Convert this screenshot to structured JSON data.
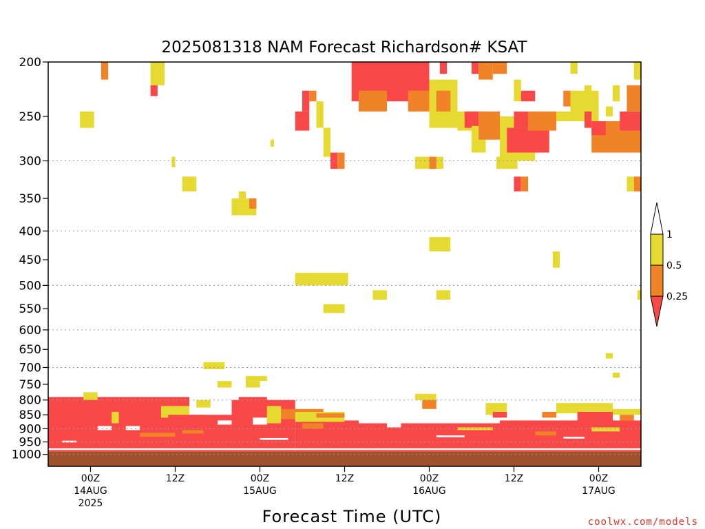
{
  "chart_data": {
    "type": "heatmap",
    "title": "2025081318 NAM Forecast Richardson# KSAT",
    "xlabel": "Forecast Time (UTC)",
    "ylabel": "",
    "y_axis": {
      "scale": "log",
      "inverted": true,
      "units": "hPa",
      "range": [
        200,
        1050
      ],
      "ticks": [
        200,
        250,
        300,
        350,
        400,
        450,
        500,
        550,
        600,
        650,
        700,
        750,
        800,
        850,
        900,
        950,
        1000
      ],
      "gridlines": [
        300,
        400,
        500,
        600,
        700,
        800,
        900,
        950,
        1000
      ]
    },
    "x_axis": {
      "units": "hours since 2025-08-13 18Z",
      "range": [
        0,
        84
      ],
      "ticks": [
        {
          "hour": 6,
          "lines": [
            "00Z",
            "14AUG",
            "2025"
          ]
        },
        {
          "hour": 18,
          "lines": [
            "12Z"
          ]
        },
        {
          "hour": 30,
          "lines": [
            "00Z",
            "15AUG"
          ]
        },
        {
          "hour": 42,
          "lines": [
            "12Z"
          ]
        },
        {
          "hour": 54,
          "lines": [
            "00Z",
            "16AUG"
          ]
        },
        {
          "hour": 66,
          "lines": [
            "12Z"
          ]
        },
        {
          "hour": 78,
          "lines": [
            "00Z",
            "17AUG"
          ]
        }
      ]
    },
    "legend": {
      "placement": "right",
      "bins": [
        {
          "label": "< 0.25",
          "color": "#f84848"
        },
        {
          "label": "0.25 - 0.5",
          "color": "#f08228"
        },
        {
          "label": "0.5 - 1",
          "color": "#e6d932"
        },
        {
          "label": "> 1",
          "color": "#ffffff"
        }
      ],
      "tick_labels": [
        "1",
        "0.5",
        "0.25"
      ]
    },
    "ground_color": "#a0522d",
    "cells": [
      {
        "t": [
          7.5,
          8.5
        ],
        "p": [
          200,
          215
        ],
        "v": "orange"
      },
      {
        "t": [
          14.5,
          16.5
        ],
        "p": [
          200,
          220
        ],
        "v": "yellow"
      },
      {
        "t": [
          14.5,
          15.5
        ],
        "p": [
          220,
          230
        ],
        "v": "red"
      },
      {
        "t": [
          4.5,
          6.5
        ],
        "p": [
          245,
          262
        ],
        "v": "yellow"
      },
      {
        "t": [
          43,
          54
        ],
        "p": [
          200,
          235
        ],
        "v": "red"
      },
      {
        "t": [
          44,
          48
        ],
        "p": [
          225,
          245
        ],
        "v": "orange"
      },
      {
        "t": [
          51,
          54
        ],
        "p": [
          225,
          245
        ],
        "v": "orange"
      },
      {
        "t": [
          54,
          58
        ],
        "p": [
          215,
          262
        ],
        "v": "yellow"
      },
      {
        "t": [
          55,
          57
        ],
        "p": [
          225,
          245
        ],
        "v": "orange"
      },
      {
        "t": [
          55.5,
          56.5
        ],
        "p": [
          200,
          210
        ],
        "v": "red"
      },
      {
        "t": [
          58,
          62
        ],
        "p": [
          245,
          265
        ],
        "v": "yellow"
      },
      {
        "t": [
          59,
          61
        ],
        "p": [
          245,
          262
        ],
        "v": "red"
      },
      {
        "t": [
          60,
          62
        ],
        "p": [
          260,
          290
        ],
        "v": "yellow"
      },
      {
        "t": [
          61,
          64
        ],
        "p": [
          245,
          275
        ],
        "v": "orange"
      },
      {
        "t": [
          60,
          61
        ],
        "p": [
          200,
          210
        ],
        "v": "red"
      },
      {
        "t": [
          61,
          63
        ],
        "p": [
          200,
          215
        ],
        "v": "orange"
      },
      {
        "t": [
          63,
          65
        ],
        "p": [
          200,
          210
        ],
        "v": "orange"
      },
      {
        "t": [
          64,
          69
        ],
        "p": [
          250,
          300
        ],
        "v": "yellow"
      },
      {
        "t": [
          65,
          71
        ],
        "p": [
          262,
          290
        ],
        "v": "red"
      },
      {
        "t": [
          66,
          68
        ],
        "p": [
          245,
          262
        ],
        "v": "red"
      },
      {
        "t": [
          67,
          69
        ],
        "p": [
          225,
          235
        ],
        "v": "red"
      },
      {
        "t": [
          66,
          67
        ],
        "p": [
          215,
          235
        ],
        "v": "yellow"
      },
      {
        "t": [
          68,
          72
        ],
        "p": [
          245,
          265
        ],
        "v": "orange"
      },
      {
        "t": [
          72,
          74
        ],
        "p": [
          245,
          255
        ],
        "v": "yellow"
      },
      {
        "t": [
          73,
          74
        ],
        "p": [
          225,
          240
        ],
        "v": "orange"
      },
      {
        "t": [
          74,
          78
        ],
        "p": [
          225,
          255
        ],
        "v": "yellow"
      },
      {
        "t": [
          76,
          77
        ],
        "p": [
          245,
          262
        ],
        "v": "red"
      },
      {
        "t": [
          77,
          84
        ],
        "p": [
          255,
          290
        ],
        "v": "orange"
      },
      {
        "t": [
          77,
          79
        ],
        "p": [
          255,
          270
        ],
        "v": "red"
      },
      {
        "t": [
          79,
          80
        ],
        "p": [
          240,
          250
        ],
        "v": "yellow"
      },
      {
        "t": [
          81,
          84
        ],
        "p": [
          245,
          265
        ],
        "v": "red"
      },
      {
        "t": [
          83,
          84
        ],
        "p": [
          200,
          215
        ],
        "v": "yellow"
      },
      {
        "t": [
          74,
          75
        ],
        "p": [
          200,
          210
        ],
        "v": "yellow"
      },
      {
        "t": [
          76,
          77
        ],
        "p": [
          220,
          235
        ],
        "v": "yellow"
      },
      {
        "t": [
          80,
          81
        ],
        "p": [
          220,
          235
        ],
        "v": "yellow"
      },
      {
        "t": [
          82,
          84
        ],
        "p": [
          220,
          245
        ],
        "v": "orange"
      },
      {
        "t": [
          35,
          37
        ],
        "p": [
          245,
          265
        ],
        "v": "red"
      },
      {
        "t": [
          36,
          37
        ],
        "p": [
          225,
          245
        ],
        "v": "red"
      },
      {
        "t": [
          37,
          38
        ],
        "p": [
          225,
          235
        ],
        "v": "orange"
      },
      {
        "t": [
          38,
          39
        ],
        "p": [
          235,
          262
        ],
        "v": "yellow"
      },
      {
        "t": [
          39,
          40
        ],
        "p": [
          262,
          295
        ],
        "v": "yellow"
      },
      {
        "t": [
          40,
          41
        ],
        "p": [
          290,
          310
        ],
        "v": "red"
      },
      {
        "t": [
          41,
          42
        ],
        "p": [
          290,
          310
        ],
        "v": "orange"
      },
      {
        "t": [
          31.5,
          32
        ],
        "p": [
          275,
          283
        ],
        "v": "yellow"
      },
      {
        "t": [
          17.5,
          18
        ],
        "p": [
          295,
          308
        ],
        "v": "yellow"
      },
      {
        "t": [
          19,
          21
        ],
        "p": [
          320,
          340
        ],
        "v": "yellow"
      },
      {
        "t": [
          26,
          29.5
        ],
        "p": [
          350,
          375
        ],
        "v": "yellow"
      },
      {
        "t": [
          28.5,
          29.5
        ],
        "p": [
          350,
          365
        ],
        "v": "orange"
      },
      {
        "t": [
          27,
          28
        ],
        "p": [
          340,
          350
        ],
        "v": "yellow"
      },
      {
        "t": [
          52,
          56
        ],
        "p": [
          295,
          310
        ],
        "v": "yellow"
      },
      {
        "t": [
          54,
          55
        ],
        "p": [
          295,
          310
        ],
        "v": "orange"
      },
      {
        "t": [
          63.5,
          66.5
        ],
        "p": [
          295,
          310
        ],
        "v": "yellow"
      },
      {
        "t": [
          66,
          67
        ],
        "p": [
          320,
          340
        ],
        "v": "red"
      },
      {
        "t": [
          67,
          68
        ],
        "p": [
          320,
          340
        ],
        "v": "orange"
      },
      {
        "t": [
          82,
          83
        ],
        "p": [
          320,
          340
        ],
        "v": "yellow"
      },
      {
        "t": [
          83,
          84
        ],
        "p": [
          320,
          340
        ],
        "v": "orange"
      },
      {
        "t": [
          54,
          57
        ],
        "p": [
          410,
          435
        ],
        "v": "yellow"
      },
      {
        "t": [
          71.5,
          72.5
        ],
        "p": [
          435,
          465
        ],
        "v": "yellow"
      },
      {
        "t": [
          35,
          42.5
        ],
        "p": [
          475,
          500
        ],
        "v": "yellow"
      },
      {
        "t": [
          46,
          48
        ],
        "p": [
          510,
          530
        ],
        "v": "yellow"
      },
      {
        "t": [
          55,
          57
        ],
        "p": [
          510,
          530
        ],
        "v": "yellow"
      },
      {
        "t": [
          39,
          42
        ],
        "p": [
          540,
          560
        ],
        "v": "yellow"
      },
      {
        "t": [
          83.5,
          84
        ],
        "p": [
          510,
          530
        ],
        "v": "yellow"
      },
      {
        "t": [
          22,
          25
        ],
        "p": [
          685,
          705
        ],
        "v": "yellow"
      },
      {
        "t": [
          24,
          26
        ],
        "p": [
          740,
          760
        ],
        "v": "yellow"
      },
      {
        "t": [
          28,
          30
        ],
        "p": [
          740,
          760
        ],
        "v": "yellow"
      },
      {
        "t": [
          28,
          31
        ],
        "p": [
          725,
          740
        ],
        "v": "yellow"
      },
      {
        "t": [
          79,
          80
        ],
        "p": [
          660,
          675
        ],
        "v": "yellow"
      },
      {
        "t": [
          80,
          81
        ],
        "p": [
          715,
          730
        ],
        "v": "yellow"
      },
      {
        "t": [
          0,
          20
        ],
        "p": [
          790,
          1035
        ],
        "v": "red"
      },
      {
        "t": [
          20,
          26
        ],
        "p": [
          850,
          1035
        ],
        "v": "red"
      },
      {
        "t": [
          26,
          35
        ],
        "p": [
          800,
          1035
        ],
        "v": "red"
      },
      {
        "t": [
          35,
          44
        ],
        "p": [
          870,
          1035
        ],
        "v": "red"
      },
      {
        "t": [
          44,
          64
        ],
        "p": [
          880,
          1035
        ],
        "v": "red"
      },
      {
        "t": [
          64,
          84
        ],
        "p": [
          870,
          1035
        ],
        "v": "red"
      },
      {
        "t": [
          5,
          7
        ],
        "p": [
          775,
          800
        ],
        "v": "yellow"
      },
      {
        "t": [
          9,
          10
        ],
        "p": [
          840,
          880
        ],
        "v": "yellow"
      },
      {
        "t": [
          10,
          11
        ],
        "p": [
          820,
          870
        ],
        "v": "red"
      },
      {
        "t": [
          16,
          20
        ],
        "p": [
          820,
          860
        ],
        "v": "yellow"
      },
      {
        "t": [
          17,
          22
        ],
        "p": [
          850,
          885
        ],
        "v": "red"
      },
      {
        "t": [
          21,
          23
        ],
        "p": [
          800,
          825
        ],
        "v": "yellow"
      },
      {
        "t": [
          27,
          31
        ],
        "p": [
          790,
          815
        ],
        "v": "red"
      },
      {
        "t": [
          31,
          33
        ],
        "p": [
          820,
          880
        ],
        "v": "yellow"
      },
      {
        "t": [
          33,
          39
        ],
        "p": [
          830,
          865
        ],
        "v": "orange"
      },
      {
        "t": [
          35,
          42
        ],
        "p": [
          840,
          875
        ],
        "v": "yellow"
      },
      {
        "t": [
          38,
          42
        ],
        "p": [
          845,
          860
        ],
        "v": "orange"
      },
      {
        "t": [
          52,
          55
        ],
        "p": [
          780,
          800
        ],
        "v": "yellow"
      },
      {
        "t": [
          53,
          55
        ],
        "p": [
          800,
          830
        ],
        "v": "orange"
      },
      {
        "t": [
          62,
          65
        ],
        "p": [
          810,
          850
        ],
        "v": "yellow"
      },
      {
        "t": [
          63,
          65
        ],
        "p": [
          840,
          860
        ],
        "v": "red"
      },
      {
        "t": [
          70,
          72
        ],
        "p": [
          840,
          860
        ],
        "v": "orange"
      },
      {
        "t": [
          72,
          80
        ],
        "p": [
          810,
          845
        ],
        "v": "yellow"
      },
      {
        "t": [
          75,
          80
        ],
        "p": [
          840,
          880
        ],
        "v": "red"
      },
      {
        "t": [
          80,
          84
        ],
        "p": [
          830,
          850
        ],
        "v": "yellow"
      },
      {
        "t": [
          81,
          83
        ],
        "p": [
          850,
          870
        ],
        "v": "orange"
      },
      {
        "t": [
          13,
          18
        ],
        "p": [
          915,
          930
        ],
        "v": "orange"
      },
      {
        "t": [
          19,
          22
        ],
        "p": [
          905,
          918
        ],
        "v": "orange"
      },
      {
        "t": [
          36,
          39
        ],
        "p": [
          880,
          900
        ],
        "v": "orange"
      },
      {
        "t": [
          58,
          63
        ],
        "p": [
          895,
          905
        ],
        "v": "yellow"
      },
      {
        "t": [
          69,
          72
        ],
        "p": [
          910,
          925
        ],
        "v": "orange"
      },
      {
        "t": [
          77,
          81
        ],
        "p": [
          895,
          910
        ],
        "v": "yellow"
      },
      {
        "t": [
          7,
          9
        ],
        "p": [
          890,
          905
        ],
        "v": "white"
      },
      {
        "t": [
          11,
          13
        ],
        "p": [
          890,
          905
        ],
        "v": "white"
      },
      {
        "t": [
          24,
          26
        ],
        "p": [
          870,
          885
        ],
        "v": "white"
      },
      {
        "t": [
          29,
          31
        ],
        "p": [
          860,
          885
        ],
        "v": "white"
      },
      {
        "t": [
          48,
          50
        ],
        "p": [
          880,
          895
        ],
        "v": "white"
      },
      {
        "t": [
          2,
          4
        ],
        "p": [
          945,
          952
        ],
        "v": "white"
      },
      {
        "t": [
          30,
          34
        ],
        "p": [
          935,
          942
        ],
        "v": "white"
      },
      {
        "t": [
          55,
          59
        ],
        "p": [
          925,
          932
        ],
        "v": "white"
      },
      {
        "t": [
          73,
          76
        ],
        "p": [
          930,
          937
        ],
        "v": "white"
      },
      {
        "t": [
          0,
          84
        ],
        "p": [
          975,
          982
        ],
        "v": "white"
      }
    ]
  },
  "credit": "coolwx.com/models"
}
